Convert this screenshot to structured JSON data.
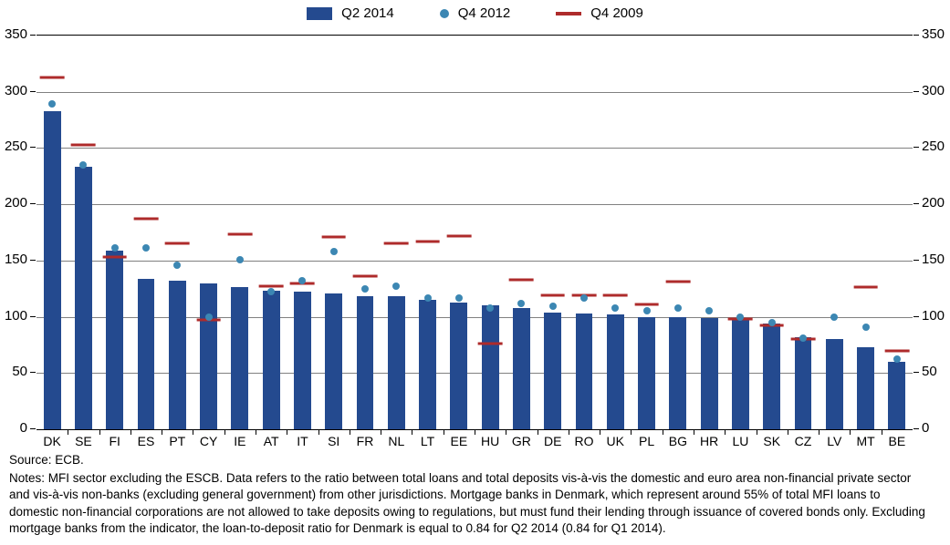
{
  "chart": {
    "type": "bar+scatter+hline",
    "background_color": "#ffffff",
    "grid_color": "#808080",
    "axis_color": "#000000",
    "label_fontsize": 15,
    "cat_label_fontsize": 14,
    "ylim": [
      0,
      350
    ],
    "ytick_step": 50,
    "yticks": [
      0,
      50,
      100,
      150,
      200,
      250,
      300,
      350
    ],
    "bar_width": 0.55,
    "hline_width": 0.78,
    "dot_size": 8,
    "categories": [
      "DK",
      "SE",
      "FI",
      "ES",
      "PT",
      "CY",
      "IE",
      "AT",
      "IT",
      "SI",
      "FR",
      "NL",
      "LT",
      "EE",
      "HU",
      "GR",
      "DE",
      "RO",
      "UK",
      "PL",
      "BG",
      "HR",
      "LU",
      "SK",
      "CZ",
      "LV",
      "MT",
      "BE"
    ],
    "series": {
      "q2_2014": {
        "label": "Q2 2014",
        "kind": "bar",
        "color": "#244A8F",
        "values": [
          283,
          233,
          159,
          134,
          132,
          130,
          126,
          123,
          122,
          121,
          118,
          118,
          115,
          113,
          110,
          108,
          104,
          103,
          102,
          100,
          100,
          99,
          97,
          94,
          82,
          80,
          73,
          60
        ]
      },
      "q4_2012": {
        "label": "Q4 2012",
        "kind": "dot",
        "color": "#3C87B3",
        "values": [
          289,
          235,
          161,
          161,
          146,
          100,
          151,
          122,
          132,
          158,
          125,
          127,
          117,
          117,
          108,
          112,
          109,
          117,
          108,
          105,
          108,
          105,
          100,
          95,
          81,
          100,
          91,
          62
        ]
      },
      "q4_2009": {
        "label": "Q4 2009",
        "kind": "hline",
        "color": "#AE2B2B",
        "values": [
          313,
          253,
          153,
          187,
          165,
          97,
          173,
          127,
          130,
          171,
          136,
          165,
          167,
          172,
          76,
          133,
          119,
          119,
          119,
          111,
          131,
          null,
          98,
          92,
          80,
          null,
          126,
          70
        ]
      }
    }
  },
  "legend_items": [
    "q2_2014",
    "q4_2012",
    "q4_2009"
  ],
  "notes": {
    "source": "Source: ECB.",
    "body": "Notes: MFI sector excluding the ESCB. Data refers to the ratio between total loans and total deposits vis-à-vis the domestic and euro area non-financial private sector and vis-à-vis non-banks (excluding general government) from other jurisdictions. Mortgage banks in Denmark, which represent around 55% of total MFI loans to domestic non-financial corporations are not allowed to take deposits owing to regulations, but must fund their lending through issuance of covered bonds only. Excluding mortgage banks from the indicator, the loan-to-deposit ratio for Denmark is equal to 0.84 for Q2 2014 (0.84 for Q1 2014)."
  }
}
